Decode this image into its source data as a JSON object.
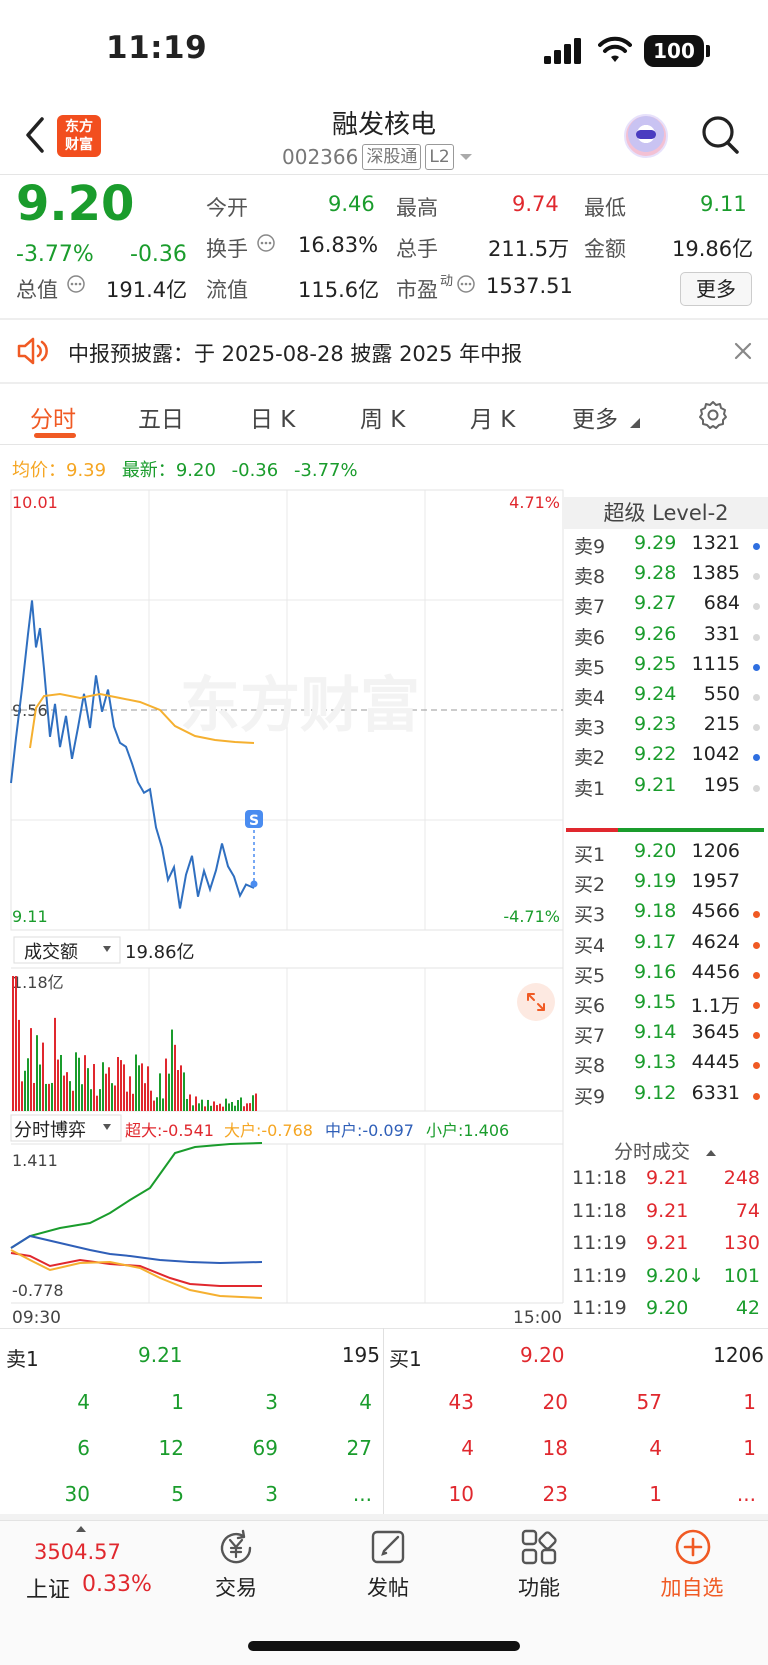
{
  "status_bar": {
    "time": "11:19",
    "battery": "100"
  },
  "header": {
    "logo_text": "东方财富",
    "title": "融发核电",
    "code": "002366",
    "tags": [
      "深股通",
      "L2"
    ]
  },
  "quote": {
    "price": "9.20",
    "change_pct": "-3.77%",
    "change": "-0.36",
    "fields": [
      {
        "label": "今开",
        "value": "9.46"
      },
      {
        "label": "最高",
        "value": "9.74"
      },
      {
        "label": "最低",
        "value": "9.11"
      },
      {
        "label": "换手",
        "value": "16.83%"
      },
      {
        "label": "总手",
        "value": "211.5万"
      },
      {
        "label": "金额",
        "value": "19.86亿"
      },
      {
        "label": "总值",
        "value": "191.4亿"
      },
      {
        "label": "流值",
        "value": "115.6亿"
      },
      {
        "label": "市盈",
        "sup": "动",
        "value": "1537.51"
      }
    ],
    "more_label": "更多"
  },
  "notice": {
    "text": "中报预披露：于 2025-08-28 披露 2025 年中报"
  },
  "tabs": [
    "分时",
    "五日",
    "日 K",
    "周 K",
    "月 K",
    "更多"
  ],
  "info_line": {
    "avg_label": "均价：",
    "avg": "9.39",
    "latest_label": "最新：",
    "latest": "9.20",
    "change": "-0.36",
    "change_pct": "-3.77%"
  },
  "chart": {
    "y_top": "10.01",
    "y_mid": "9.56",
    "y_bottom": "9.11",
    "pct_top": "4.71%",
    "pct_bottom": "-4.71%",
    "watermark": "东方财富",
    "trade_marker": "S",
    "volume_selector": "成交额",
    "volume_total": "19.86亿",
    "volume_max": "1.18亿",
    "game_selector": "分时博弈",
    "game_legend": [
      {
        "label": "超大:-0.541",
        "color": "#e0282e"
      },
      {
        "label": "大户:-0.768",
        "color": "#f5a623"
      },
      {
        "label": "中户:-0.097",
        "color": "#2f5fb8"
      },
      {
        "label": "小户:1.406",
        "color": "#1a9c2c"
      }
    ],
    "game_max": "1.411",
    "game_min": "-0.778",
    "time_start": "09:30",
    "time_end": "15:00"
  },
  "level2": {
    "title": "超级 Level-2",
    "asks": [
      {
        "label": "卖9",
        "price": "9.29",
        "vol": "1321",
        "dot": "#2f6fe0"
      },
      {
        "label": "卖8",
        "price": "9.28",
        "vol": "1385",
        "dot": "#d8d8d8"
      },
      {
        "label": "卖7",
        "price": "9.27",
        "vol": "684",
        "dot": "#d8d8d8"
      },
      {
        "label": "卖6",
        "price": "9.26",
        "vol": "331",
        "dot": "#d8d8d8"
      },
      {
        "label": "卖5",
        "price": "9.25",
        "vol": "1115",
        "dot": "#2f6fe0"
      },
      {
        "label": "卖4",
        "price": "9.24",
        "vol": "550",
        "dot": "#d8d8d8"
      },
      {
        "label": "卖3",
        "price": "9.23",
        "vol": "215",
        "dot": "#d8d8d8"
      },
      {
        "label": "卖2",
        "price": "9.22",
        "vol": "1042",
        "dot": "#2f6fe0"
      },
      {
        "label": "卖1",
        "price": "9.21",
        "vol": "195",
        "dot": "#d8d8d8"
      }
    ],
    "bids": [
      {
        "label": "买1",
        "price": "9.20",
        "vol": "1206",
        "dot": ""
      },
      {
        "label": "买2",
        "price": "9.19",
        "vol": "1957",
        "dot": ""
      },
      {
        "label": "买3",
        "price": "9.18",
        "vol": "4566",
        "dot": "#f05a24"
      },
      {
        "label": "买4",
        "price": "9.17",
        "vol": "4624",
        "dot": "#f05a24"
      },
      {
        "label": "买5",
        "price": "9.16",
        "vol": "4456",
        "dot": "#f05a24"
      },
      {
        "label": "买6",
        "price": "9.15",
        "vol": "1.1万",
        "dot": "#f05a24"
      },
      {
        "label": "买7",
        "price": "9.14",
        "vol": "3645",
        "dot": "#f05a24"
      },
      {
        "label": "买8",
        "price": "9.13",
        "vol": "4445",
        "dot": "#f05a24"
      },
      {
        "label": "买9",
        "price": "9.12",
        "vol": "6331",
        "dot": "#f05a24"
      }
    ],
    "ticks_title": "分时成交",
    "ticks": [
      {
        "time": "11:18",
        "price": "9.21",
        "vol": "248",
        "color": "red"
      },
      {
        "time": "11:18",
        "price": "9.21",
        "vol": "74",
        "color": "red"
      },
      {
        "time": "11:19",
        "price": "9.21",
        "vol": "130",
        "color": "red"
      },
      {
        "time": "11:19",
        "price": "9.20↓",
        "vol": "101",
        "color": "green"
      },
      {
        "time": "11:19",
        "price": "9.20",
        "vol": "42",
        "color": "green"
      }
    ]
  },
  "queue": {
    "sell": {
      "label": "卖1",
      "price": "9.21",
      "vol": "195",
      "rows": [
        [
          "4",
          "1",
          "3",
          "4"
        ],
        [
          "6",
          "12",
          "69",
          "27"
        ],
        [
          "30",
          "5",
          "3",
          "..."
        ]
      ]
    },
    "buy": {
      "label": "买1",
      "price": "9.20",
      "vol": "1206",
      "rows": [
        [
          "43",
          "20",
          "57",
          "1"
        ],
        [
          "4",
          "18",
          "4",
          "1"
        ],
        [
          "10",
          "23",
          "1",
          "..."
        ]
      ]
    }
  },
  "nav": {
    "index_value": "3504.57",
    "index_name": "上证",
    "index_change": "0.33%",
    "items": [
      "交易",
      "发帖",
      "功能",
      "加自选"
    ]
  }
}
